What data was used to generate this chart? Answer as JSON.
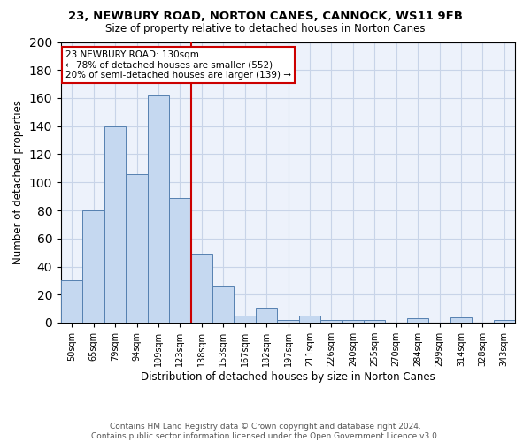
{
  "title": "23, NEWBURY ROAD, NORTON CANES, CANNOCK, WS11 9FB",
  "subtitle": "Size of property relative to detached houses in Norton Canes",
  "xlabel": "Distribution of detached houses by size in Norton Canes",
  "ylabel": "Number of detached properties",
  "bar_labels": [
    "50sqm",
    "65sqm",
    "79sqm",
    "94sqm",
    "109sqm",
    "123sqm",
    "138sqm",
    "153sqm",
    "167sqm",
    "182sqm",
    "197sqm",
    "211sqm",
    "226sqm",
    "240sqm",
    "255sqm",
    "270sqm",
    "284sqm",
    "299sqm",
    "314sqm",
    "328sqm",
    "343sqm"
  ],
  "bar_values": [
    30,
    80,
    140,
    106,
    162,
    89,
    49,
    26,
    5,
    11,
    2,
    5,
    2,
    2,
    2,
    0,
    3,
    0,
    4,
    0,
    2
  ],
  "bar_color": "#c5d8f0",
  "bar_edge_color": "#5580b0",
  "vline_x": 6.0,
  "vline_color": "#cc0000",
  "annotation_text": "23 NEWBURY ROAD: 130sqm\n← 78% of detached houses are smaller (552)\n20% of semi-detached houses are larger (139) →",
  "annotation_box_color": "#ffffff",
  "annotation_box_edge": "#cc0000",
  "ylim": [
    0,
    200
  ],
  "yticks": [
    0,
    20,
    40,
    60,
    80,
    100,
    120,
    140,
    160,
    180,
    200
  ],
  "footer": "Contains HM Land Registry data © Crown copyright and database right 2024.\nContains public sector information licensed under the Open Government Licence v3.0.",
  "bg_color": "#edf2fb",
  "grid_color": "#c8d4e8",
  "title_fontsize": 9.5,
  "subtitle_fontsize": 8.5,
  "xlabel_fontsize": 8.5,
  "ylabel_fontsize": 8.5,
  "tick_fontsize": 7.0,
  "ann_fontsize": 7.5,
  "footer_fontsize": 6.5
}
